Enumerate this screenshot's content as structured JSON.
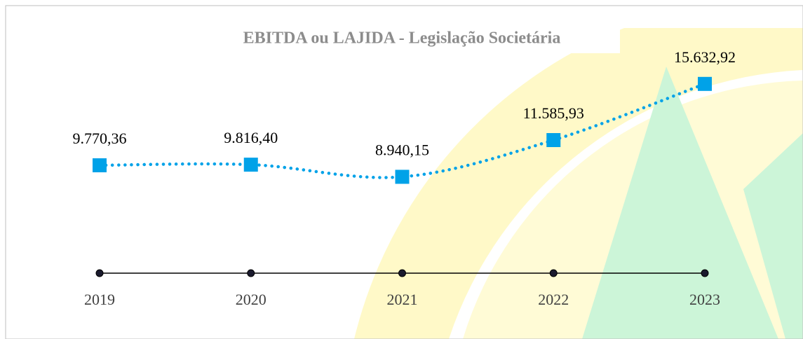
{
  "chart_data": {
    "type": "line",
    "title": "EBITDA ou LAJIDA - Legislação Societária",
    "categories": [
      "2019",
      "2020",
      "2021",
      "2022",
      "2023"
    ],
    "series": [
      {
        "name": "EBITDA",
        "color": "#00a2e8",
        "values": [
          9770.36,
          9816.4,
          8940.15,
          11585.93,
          15632.92
        ],
        "value_labels": [
          "9.770,36",
          "9.816,40",
          "8.940,15",
          "11.585,93",
          "15.632,92"
        ]
      }
    ],
    "ylim": [
      2000,
      17000
    ]
  }
}
